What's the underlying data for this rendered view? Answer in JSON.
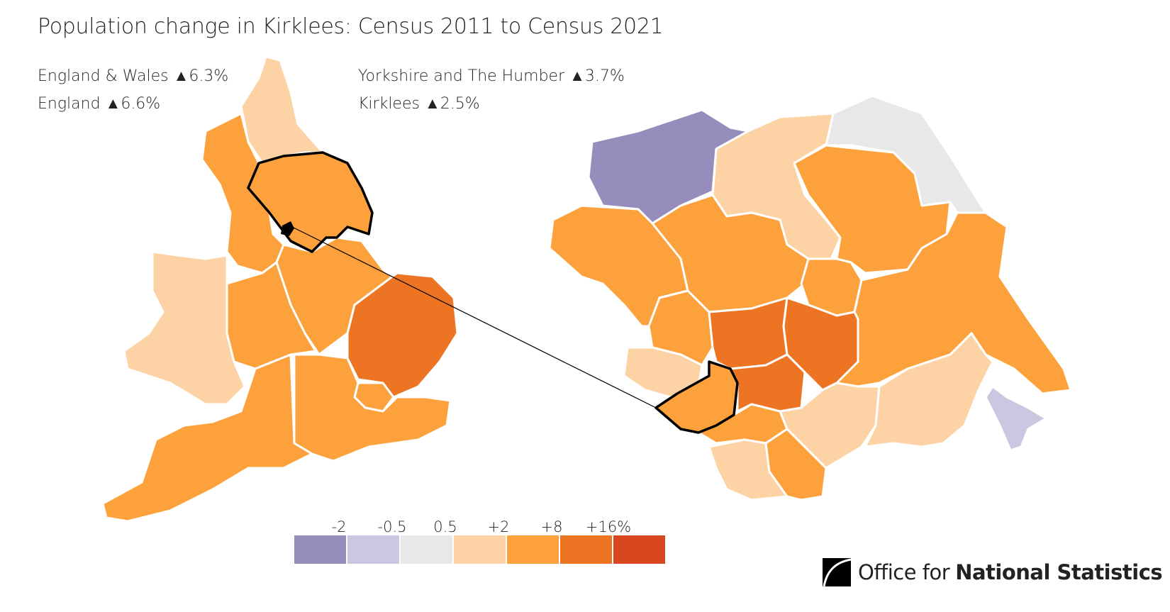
{
  "title": "Population change in Kirklees: Census 2011 to Census 2021",
  "stats": {
    "england_wales": "England & Wales ▲6.3%",
    "england": "England ▲6.6%",
    "region": "Yorkshire and The Humber ▲3.7%",
    "area": "Kirklees ▲2.5%"
  },
  "colors": {
    "lt_-2": "#978dbd",
    "-2_to_-0.5": "#cbc7e0",
    "-0.5_to_0.5": "#e8e8e8",
    "0.5_to_2": "#fdd3a6",
    "2_to_8": "#fda13c",
    "8_to_16": "#ed7423",
    "gt_16": "#d94620"
  },
  "legend": {
    "ticks": [
      "-2",
      "-0.5",
      "0.5",
      "+2",
      "+8",
      "+16%"
    ],
    "swatches": [
      "#978dbd",
      "#cbc7e0",
      "#e8e8e8",
      "#fdd3a6",
      "#fda13c",
      "#ed7423",
      "#d94620"
    ]
  },
  "highlight": {
    "region": "Yorkshire and The Humber",
    "area": "Kirklees"
  },
  "logo": {
    "text_light": "Office for",
    "text_bold": "National Statistics"
  }
}
